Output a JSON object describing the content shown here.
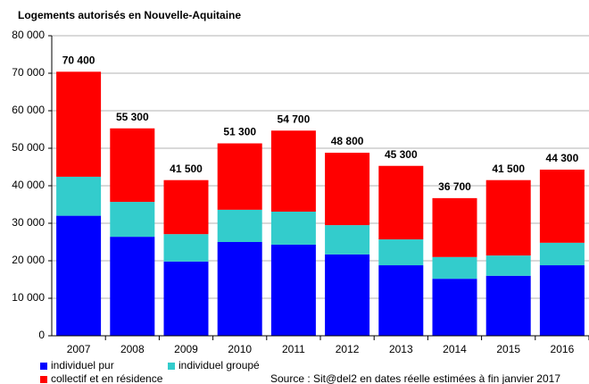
{
  "chart_data": {
    "type": "stacked-bar",
    "title": "Logements autorisés en Nouvelle-Aquitaine",
    "categories": [
      "2007",
      "2008",
      "2009",
      "2010",
      "2011",
      "2012",
      "2013",
      "2014",
      "2015",
      "2016"
    ],
    "series": [
      {
        "name": "individuel pur",
        "color": "#0000ff",
        "values": [
          32000,
          26400,
          19800,
          25000,
          24300,
          21700,
          18800,
          15200,
          16000,
          18800
        ]
      },
      {
        "name": "individuel groupé",
        "color": "#33cccc",
        "values": [
          10400,
          9300,
          7300,
          8600,
          8800,
          7800,
          6900,
          5800,
          5400,
          6000
        ]
      },
      {
        "name": "collectif et en résidence",
        "color": "#ff0000",
        "values": [
          28000,
          19600,
          14400,
          17700,
          21600,
          19300,
          19600,
          15700,
          20100,
          19500
        ]
      }
    ],
    "totals": [
      70400,
      55300,
      41500,
      51300,
      54700,
      48800,
      45300,
      36700,
      41500,
      44300
    ],
    "total_labels": [
      "70 400",
      "55 300",
      "41 500",
      "51 300",
      "54 700",
      "48 800",
      "45 300",
      "36 700",
      "41 500",
      "44 300"
    ],
    "ylim": [
      0,
      80000
    ],
    "yticks": [
      0,
      {
        "value": 10000,
        "label": "10 000"
      },
      {
        "value": 20000,
        "label": "20 000"
      },
      {
        "value": 30000,
        "label": "30 000"
      },
      {
        "value": 40000,
        "label": "40 000"
      },
      {
        "value": 50000,
        "label": "50 000"
      },
      {
        "value": 60000,
        "label": "60 000"
      },
      {
        "value": 70000,
        "label": "70 000"
      },
      {
        "value": 80000,
        "label": "80 000"
      }
    ],
    "grid": true,
    "source": "Source : Sit@del2 en dates réelle estimées à fin janvier 2017"
  }
}
